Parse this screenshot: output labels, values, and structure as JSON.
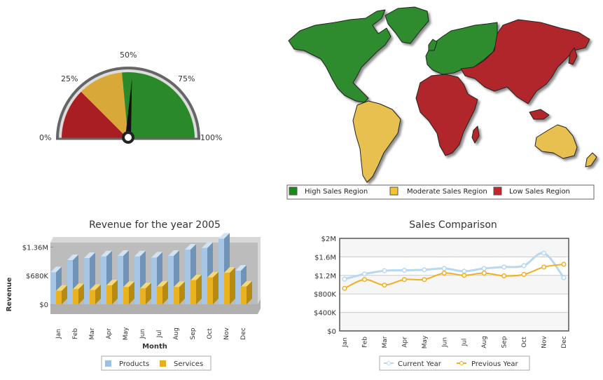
{
  "colors": {
    "green": "#2e8b2e",
    "yellow": "#e8c050",
    "red": "#b0282c",
    "products": "#9cc0e0",
    "services": "#e5b020",
    "current": "#b8d8f0",
    "previous": "#f0b020"
  },
  "gauge": {
    "labels": {
      "p0": "0%",
      "p25": "25%",
      "p50": "50%",
      "p75": "75%",
      "p100": "100%"
    }
  },
  "map": {
    "legend": [
      {
        "label": "High Sales Region",
        "color": "#2e8b2e"
      },
      {
        "label": "Moderate Sales Region",
        "color": "#f4c430"
      },
      {
        "label": "Low Sales Region",
        "color": "#c0282c"
      }
    ]
  },
  "chart_data": [
    {
      "type": "gauge",
      "value": 52,
      "range": [
        0,
        100
      ],
      "bands": [
        {
          "from": 0,
          "to": 25,
          "color": "#a81e22"
        },
        {
          "from": 25,
          "to": 47,
          "color": "#d8a838"
        },
        {
          "from": 47,
          "to": 100,
          "color": "#2a8a2a"
        }
      ],
      "tick_labels": [
        "0%",
        "25%",
        "50%",
        "75%",
        "100%"
      ]
    },
    {
      "type": "bar",
      "title": "Revenue for the year 2005",
      "xlabel": "Month",
      "ylabel": "Revenue",
      "categories": [
        "Jan",
        "Feb",
        "Mar",
        "Apr",
        "May",
        "Jun",
        "Jul",
        "Aug",
        "Sep",
        "Oct",
        "Nov",
        "Dec"
      ],
      "series": [
        {
          "name": "Products",
          "values": [
            760000,
            1050000,
            1100000,
            1140000,
            1150000,
            1140000,
            1110000,
            1150000,
            1300000,
            1340000,
            1560000,
            800000
          ]
        },
        {
          "name": "Services",
          "values": [
            320000,
            360000,
            340000,
            450000,
            410000,
            380000,
            420000,
            410000,
            570000,
            640000,
            750000,
            420000
          ]
        }
      ],
      "ylim": [
        0,
        1600000
      ],
      "y_ticks": [
        {
          "value": 0,
          "label": "$0"
        },
        {
          "value": 680000,
          "label": "$680K"
        },
        {
          "value": 1360000,
          "label": "$1.36M"
        }
      ],
      "legend": "bottom"
    },
    {
      "type": "line",
      "title": "Sales Comparison",
      "categories": [
        "Jan",
        "Feb",
        "Mar",
        "Apr",
        "May",
        "Jun",
        "Jul",
        "Aug",
        "Sep",
        "Oct",
        "Nov",
        "Dec"
      ],
      "series": [
        {
          "name": "Current Year",
          "values": [
            1120000,
            1230000,
            1300000,
            1310000,
            1320000,
            1350000,
            1290000,
            1350000,
            1380000,
            1410000,
            1680000,
            1150000
          ]
        },
        {
          "name": "Previous Year",
          "values": [
            920000,
            1110000,
            990000,
            1110000,
            1110000,
            1250000,
            1200000,
            1250000,
            1190000,
            1220000,
            1380000,
            1440000
          ]
        }
      ],
      "ylim": [
        0,
        2000000
      ],
      "y_ticks": [
        {
          "value": 0,
          "label": "$0"
        },
        {
          "value": 400000,
          "label": "$400K"
        },
        {
          "value": 800000,
          "label": "$800K"
        },
        {
          "value": 1200000,
          "label": "$1.2M"
        },
        {
          "value": 1600000,
          "label": "$1.6M"
        },
        {
          "value": 2000000,
          "label": "$2M"
        }
      ],
      "legend": "bottom"
    }
  ]
}
